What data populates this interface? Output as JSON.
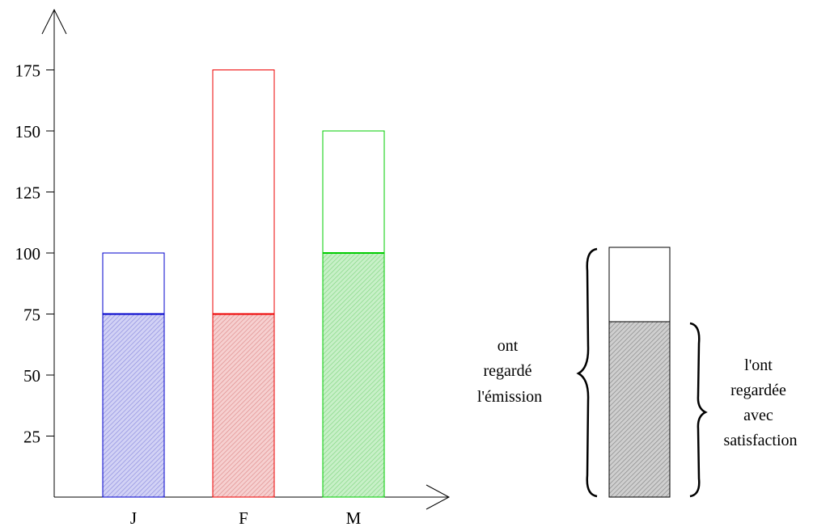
{
  "chart_data": {
    "type": "bar",
    "categories": [
      "J",
      "F",
      "M"
    ],
    "series": [
      {
        "values": [
          100,
          175,
          150
        ],
        "style": "outline"
      },
      {
        "values": [
          75,
          75,
          100
        ],
        "style": "filled"
      }
    ],
    "colors": [
      "#0000cc",
      "#ee0000",
      "#00cc00"
    ],
    "yticks": [
      25,
      50,
      75,
      100,
      125,
      150,
      175
    ],
    "ylim": [
      0,
      200
    ],
    "grid": false,
    "xlabel": "",
    "ylabel": ""
  },
  "legend": {
    "label_left_lines": [
      "ont",
      "regardé",
      "l'émission"
    ],
    "label_right_lines": [
      "l'ont",
      "regardée",
      "avec",
      "satisfaction"
    ],
    "box_color": "#000000",
    "fill_color": "#888888"
  }
}
